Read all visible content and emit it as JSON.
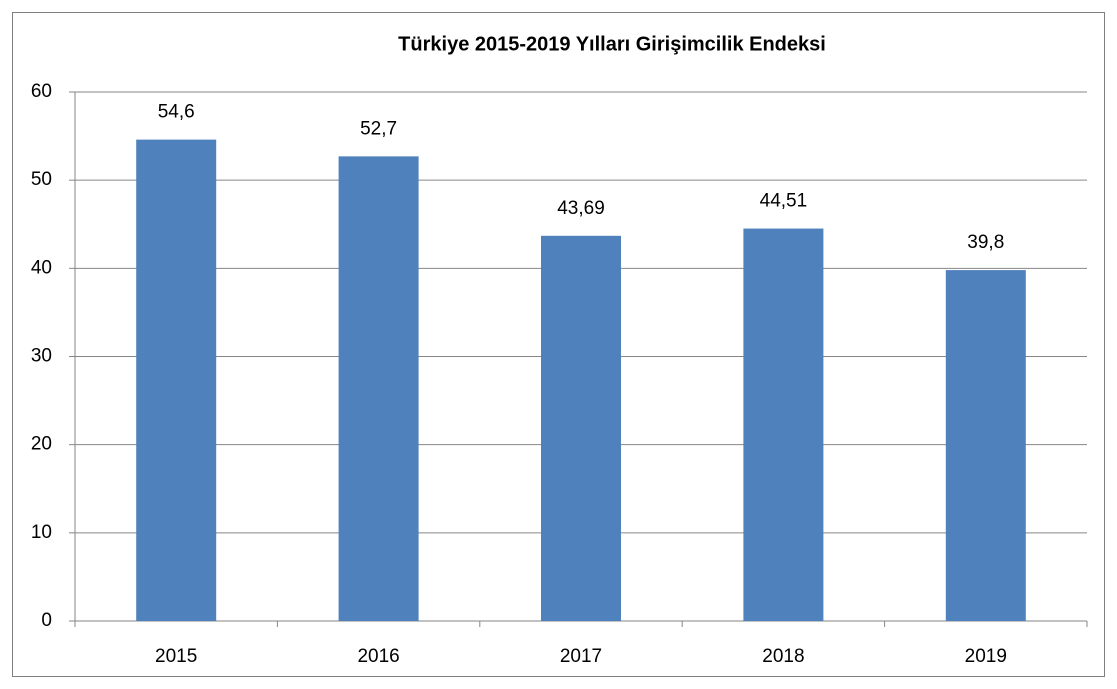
{
  "chart_data": {
    "type": "bar",
    "title": "Türkiye 2015-2019 Yılları Girişimcilik Endeksi",
    "categories": [
      "2015",
      "2016",
      "2017",
      "2018",
      "2019"
    ],
    "values": [
      54.6,
      52.7,
      43.69,
      44.51,
      39.8
    ],
    "value_labels": [
      "54,6",
      "52,7",
      "43,69",
      "44,51",
      "39,8"
    ],
    "color": "#4f81bd",
    "ylim": [
      0,
      60
    ],
    "yticks": [
      0,
      10,
      20,
      30,
      40,
      50,
      60
    ],
    "grid": true
  }
}
